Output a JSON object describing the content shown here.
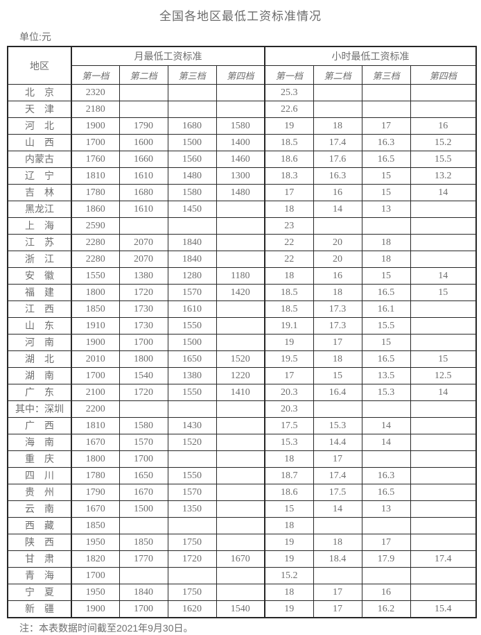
{
  "title": "全国各地区最低工资标准情况",
  "unit_label": "单位:元",
  "note": "注：本表数据时间截至2021年9月30日。",
  "colors": {
    "text": "#6b6b6b",
    "border": "#262626",
    "background": "#ffffff"
  },
  "table": {
    "region_header": "地区",
    "monthly_header": "月最低工资标准",
    "hourly_header": "小时最低工资标准",
    "tier_headers": [
      "第一档",
      "第二档",
      "第三档",
      "第四档"
    ],
    "rows": [
      {
        "region": "北　京",
        "monthly": [
          "2320",
          "",
          "",
          ""
        ],
        "hourly": [
          "25.3",
          "",
          "",
          ""
        ]
      },
      {
        "region": "天　津",
        "monthly": [
          "2180",
          "",
          "",
          ""
        ],
        "hourly": [
          "22.6",
          "",
          "",
          ""
        ]
      },
      {
        "region": "河　北",
        "monthly": [
          "1900",
          "1790",
          "1680",
          "1580"
        ],
        "hourly": [
          "19",
          "18",
          "17",
          "16"
        ]
      },
      {
        "region": "山　西",
        "monthly": [
          "1700",
          "1600",
          "1500",
          "1400"
        ],
        "hourly": [
          "18.5",
          "17.4",
          "16.3",
          "15.2"
        ]
      },
      {
        "region": "内蒙古",
        "monthly": [
          "1760",
          "1660",
          "1560",
          "1460"
        ],
        "hourly": [
          "18.6",
          "17.6",
          "16.5",
          "15.5"
        ]
      },
      {
        "region": "辽　宁",
        "monthly": [
          "1810",
          "1610",
          "1480",
          "1300"
        ],
        "hourly": [
          "18.3",
          "16.3",
          "15",
          "13.2"
        ]
      },
      {
        "region": "吉　林",
        "monthly": [
          "1780",
          "1680",
          "1580",
          "1480"
        ],
        "hourly": [
          "17",
          "16",
          "15",
          "14"
        ]
      },
      {
        "region": "黑龙江",
        "monthly": [
          "1860",
          "1610",
          "1450",
          ""
        ],
        "hourly": [
          "18",
          "14",
          "13",
          ""
        ]
      },
      {
        "region": "上　海",
        "monthly": [
          "2590",
          "",
          "",
          ""
        ],
        "hourly": [
          "23",
          "",
          "",
          ""
        ]
      },
      {
        "region": "江　苏",
        "monthly": [
          "2280",
          "2070",
          "1840",
          ""
        ],
        "hourly": [
          "22",
          "20",
          "18",
          ""
        ]
      },
      {
        "region": "浙　江",
        "monthly": [
          "2280",
          "2070",
          "1840",
          ""
        ],
        "hourly": [
          "22",
          "20",
          "18",
          ""
        ]
      },
      {
        "region": "安　徽",
        "monthly": [
          "1550",
          "1380",
          "1280",
          "1180"
        ],
        "hourly": [
          "18",
          "16",
          "15",
          "14"
        ]
      },
      {
        "region": "福　建",
        "monthly": [
          "1800",
          "1720",
          "1570",
          "1420"
        ],
        "hourly": [
          "18.5",
          "18",
          "16.5",
          "15"
        ]
      },
      {
        "region": "江　西",
        "monthly": [
          "1850",
          "1730",
          "1610",
          ""
        ],
        "hourly": [
          "18.5",
          "17.3",
          "16.1",
          ""
        ]
      },
      {
        "region": "山　东",
        "monthly": [
          "1910",
          "1730",
          "1550",
          ""
        ],
        "hourly": [
          "19.1",
          "17.3",
          "15.5",
          ""
        ]
      },
      {
        "region": "河　南",
        "monthly": [
          "1900",
          "1700",
          "1500",
          ""
        ],
        "hourly": [
          "19",
          "17",
          "15",
          ""
        ]
      },
      {
        "region": "湖　北",
        "monthly": [
          "2010",
          "1800",
          "1650",
          "1520"
        ],
        "hourly": [
          "19.5",
          "18",
          "16.5",
          "15"
        ]
      },
      {
        "region": "湖　南",
        "monthly": [
          "1700",
          "1540",
          "1380",
          "1220"
        ],
        "hourly": [
          "17",
          "15",
          "13.5",
          "12.5"
        ]
      },
      {
        "region": "广　东",
        "monthly": [
          "2100",
          "1720",
          "1550",
          "1410"
        ],
        "hourly": [
          "20.3",
          "16.4",
          "15.3",
          "14"
        ]
      },
      {
        "region": "其中：深圳",
        "monthly": [
          "2200",
          "",
          "",
          ""
        ],
        "hourly": [
          "20.3",
          "",
          "",
          ""
        ]
      },
      {
        "region": "广　西",
        "monthly": [
          "1810",
          "1580",
          "1430",
          ""
        ],
        "hourly": [
          "17.5",
          "15.3",
          "14",
          ""
        ]
      },
      {
        "region": "海　南",
        "monthly": [
          "1670",
          "1570",
          "1520",
          ""
        ],
        "hourly": [
          "15.3",
          "14.4",
          "14",
          ""
        ]
      },
      {
        "region": "重　庆",
        "monthly": [
          "1800",
          "1700",
          "",
          ""
        ],
        "hourly": [
          "18",
          "17",
          "",
          ""
        ]
      },
      {
        "region": "四　川",
        "monthly": [
          "1780",
          "1650",
          "1550",
          ""
        ],
        "hourly": [
          "18.7",
          "17.4",
          "16.3",
          ""
        ]
      },
      {
        "region": "贵　州",
        "monthly": [
          "1790",
          "1670",
          "1570",
          ""
        ],
        "hourly": [
          "18.6",
          "17.5",
          "16.5",
          ""
        ]
      },
      {
        "region": "云　南",
        "monthly": [
          "1670",
          "1500",
          "1350",
          ""
        ],
        "hourly": [
          "15",
          "14",
          "13",
          ""
        ]
      },
      {
        "region": "西　藏",
        "monthly": [
          "1850",
          "",
          "",
          ""
        ],
        "hourly": [
          "18",
          "",
          "",
          ""
        ]
      },
      {
        "region": "陕　西",
        "monthly": [
          "1950",
          "1850",
          "1750",
          ""
        ],
        "hourly": [
          "19",
          "18",
          "17",
          ""
        ]
      },
      {
        "region": "甘　肃",
        "monthly": [
          "1820",
          "1770",
          "1720",
          "1670"
        ],
        "hourly": [
          "19",
          "18.4",
          "17.9",
          "17.4"
        ]
      },
      {
        "region": "青　海",
        "monthly": [
          "1700",
          "",
          "",
          ""
        ],
        "hourly": [
          "15.2",
          "",
          "",
          ""
        ]
      },
      {
        "region": "宁　夏",
        "monthly": [
          "1950",
          "1840",
          "1750",
          ""
        ],
        "hourly": [
          "18",
          "17",
          "16",
          ""
        ]
      },
      {
        "region": "新　疆",
        "monthly": [
          "1900",
          "1700",
          "1620",
          "1540"
        ],
        "hourly": [
          "19",
          "17",
          "16.2",
          "15.4"
        ]
      }
    ]
  }
}
